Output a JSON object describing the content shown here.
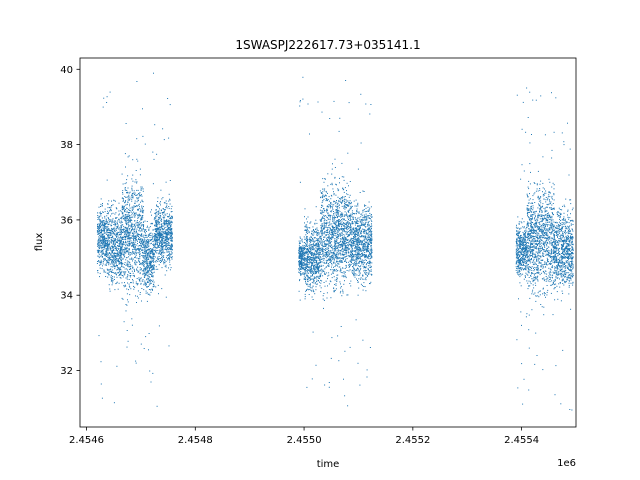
{
  "chart_data": {
    "type": "scatter",
    "title": "1SWASPJ222617.73+035141.1",
    "xlabel": "time",
    "ylabel": "flux",
    "x_offset_label": "1e6",
    "xlim": [
      2454588,
      2455500
    ],
    "ylim": [
      30.5,
      40.3
    ],
    "x_ticks": [
      2454600,
      2454800,
      2455000,
      2455200,
      2455400
    ],
    "x_tick_labels": [
      "2.4546",
      "2.4548",
      "2.4550",
      "2.4552",
      "2.4554"
    ],
    "y_ticks": [
      32,
      34,
      36,
      38,
      40
    ],
    "y_tick_labels": [
      "32",
      "34",
      "36",
      "38",
      "40"
    ],
    "grid": false,
    "marker_color": "#1f77b4",
    "marker": "small dots",
    "observing_seasons": [
      {
        "x_range": [
          2454620,
          2454758
        ],
        "segments": [
          {
            "x_range": [
              2454620,
              2454640
            ],
            "flux_center": 35.5,
            "flux_amp": 0.9
          },
          {
            "x_range": [
              2454640,
              2454665
            ],
            "flux_center": 35.3,
            "flux_amp": 1.1
          },
          {
            "x_range": [
              2454665,
              2454705
            ],
            "flux_center": 35.6,
            "flux_amp": 1.6
          },
          {
            "x_range": [
              2454705,
              2454725
            ],
            "flux_center": 35.0,
            "flux_amp": 1.0
          },
          {
            "x_range": [
              2454725,
              2454758
            ],
            "flux_center": 35.6,
            "flux_amp": 0.9
          }
        ]
      },
      {
        "x_range": [
          2454990,
          2455125
        ],
        "segments": [
          {
            "x_range": [
              2454990,
              2455000
            ],
            "flux_center": 35.0,
            "flux_amp": 0.5
          },
          {
            "x_range": [
              2455000,
              2455030
            ],
            "flux_center": 35.0,
            "flux_amp": 1.0
          },
          {
            "x_range": [
              2455030,
              2455085
            ],
            "flux_center": 35.6,
            "flux_amp": 1.5
          },
          {
            "x_range": [
              2455085,
              2455125
            ],
            "flux_center": 35.4,
            "flux_amp": 1.1
          }
        ]
      },
      {
        "x_range": [
          2455390,
          2455495
        ],
        "segments": [
          {
            "x_range": [
              2455390,
              2455410
            ],
            "flux_center": 35.2,
            "flux_amp": 0.8
          },
          {
            "x_range": [
              2455410,
              2455460
            ],
            "flux_center": 35.5,
            "flux_amp": 1.5
          },
          {
            "x_range": [
              2455460,
              2455495
            ],
            "flux_center": 35.2,
            "flux_amp": 1.1
          }
        ]
      }
    ],
    "outlier_flux_range": [
      30.9,
      39.9
    ]
  }
}
